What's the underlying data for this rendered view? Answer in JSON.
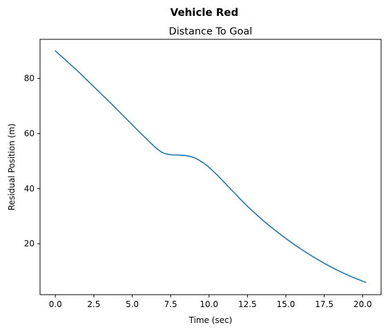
{
  "figure": {
    "suptitle": "Vehicle Red"
  },
  "chart_data": {
    "type": "line",
    "title": "Distance To Goal",
    "xlabel": "Time (sec)",
    "ylabel": "Residual Position (m)",
    "xlim": [
      -1.0,
      21.2
    ],
    "ylim": [
      1.5,
      94.2
    ],
    "xticks": [
      0.0,
      2.5,
      5.0,
      7.5,
      10.0,
      12.5,
      15.0,
      17.5,
      20.0
    ],
    "xtick_labels": [
      "0.0",
      "2.5",
      "5.0",
      "7.5",
      "10.0",
      "12.5",
      "15.0",
      "17.5",
      "20.0"
    ],
    "yticks": [
      20,
      40,
      60,
      80
    ],
    "ytick_labels": [
      "20",
      "40",
      "60",
      "80"
    ],
    "grid": false,
    "legend": "none",
    "series_color": "#1f77b4",
    "series": [
      {
        "x": [
          0.0,
          0.5,
          1.0,
          1.5,
          2.0,
          2.5,
          3.0,
          3.5,
          4.0,
          4.5,
          5.0,
          5.5,
          6.0,
          6.5,
          7.0,
          7.5,
          8.0,
          8.5,
          9.0,
          9.5,
          10.0,
          10.5,
          11.0,
          11.5,
          12.0,
          12.5,
          13.0,
          13.5,
          14.0,
          14.5,
          15.0,
          15.5,
          16.0,
          16.5,
          17.0,
          17.5,
          18.0,
          18.5,
          19.0,
          19.5,
          20.0,
          20.2
        ],
        "y": [
          90.0,
          87.5,
          85.0,
          82.4,
          79.7,
          77.0,
          74.3,
          71.6,
          68.8,
          66.0,
          63.2,
          60.4,
          57.7,
          55.0,
          53.0,
          52.3,
          52.2,
          52.0,
          51.3,
          49.8,
          47.7,
          45.1,
          42.2,
          39.3,
          36.4,
          33.6,
          31.0,
          28.5,
          26.2,
          24.0,
          21.9,
          19.9,
          18.0,
          16.2,
          14.5,
          12.9,
          11.4,
          10.0,
          8.7,
          7.5,
          6.4,
          6.0
        ]
      }
    ]
  }
}
